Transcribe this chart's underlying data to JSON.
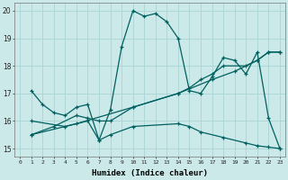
{
  "xlabel": "Humidex (Indice chaleur)",
  "bg_color": "#cce9e9",
  "line_color": "#006060",
  "grid_color": "#aad4d4",
  "xlim": [
    -0.5,
    23.5
  ],
  "ylim": [
    14.7,
    20.3
  ],
  "yticks": [
    15,
    16,
    17,
    18,
    19,
    20
  ],
  "xticks": [
    0,
    1,
    2,
    3,
    4,
    5,
    6,
    7,
    8,
    9,
    10,
    11,
    12,
    13,
    14,
    15,
    16,
    17,
    18,
    19,
    20,
    21,
    22,
    23
  ],
  "lines": [
    {
      "x": [
        1,
        2,
        3,
        4,
        5,
        6,
        7,
        8,
        9,
        10,
        11,
        12,
        13,
        14,
        15,
        16,
        17,
        18,
        19,
        20,
        21,
        22,
        23
      ],
      "y": [
        17.1,
        16.6,
        16.3,
        16.2,
        16.5,
        16.6,
        15.3,
        16.4,
        18.7,
        20.0,
        19.8,
        19.9,
        19.6,
        19.0,
        17.1,
        17.0,
        17.6,
        18.3,
        18.2,
        17.7,
        18.5,
        16.1,
        15.0
      ]
    },
    {
      "x": [
        1,
        5,
        10,
        14,
        17,
        19,
        21,
        22,
        23
      ],
      "y": [
        15.5,
        15.9,
        16.5,
        17.0,
        17.5,
        17.8,
        18.2,
        18.5,
        18.5
      ]
    },
    {
      "x": [
        1,
        3,
        5,
        6,
        7,
        8,
        10,
        14,
        15,
        16,
        17,
        18,
        20,
        21,
        22,
        23
      ],
      "y": [
        15.5,
        15.8,
        16.2,
        16.1,
        16.0,
        16.0,
        16.5,
        17.0,
        17.2,
        17.5,
        17.7,
        18.0,
        18.0,
        18.2,
        18.5,
        18.5
      ]
    },
    {
      "x": [
        1,
        4,
        6,
        7,
        8,
        10,
        14,
        15,
        16,
        18,
        20,
        21,
        22,
        23
      ],
      "y": [
        16.0,
        15.8,
        16.0,
        15.3,
        15.5,
        15.8,
        15.9,
        15.8,
        15.6,
        15.4,
        15.2,
        15.1,
        15.05,
        15.0
      ]
    }
  ]
}
